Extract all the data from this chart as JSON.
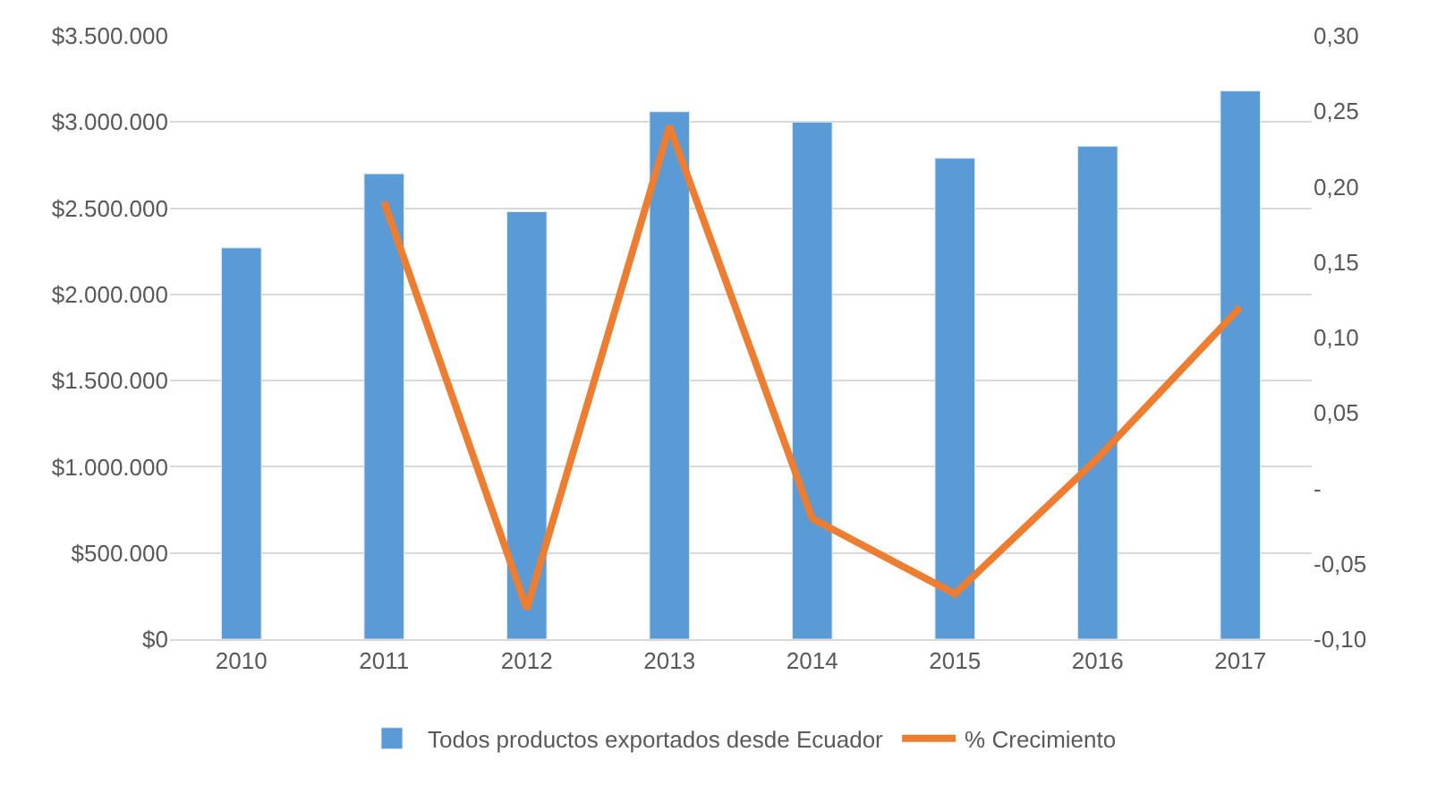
{
  "chart_data": {
    "type": "bar",
    "categories": [
      "2010",
      "2011",
      "2012",
      "2013",
      "2014",
      "2015",
      "2016",
      "2017"
    ],
    "series": [
      {
        "name": "Todos productos exportados desde Ecuador",
        "color": "#5b9bd5",
        "values": [
          2270000,
          2700000,
          2480000,
          3060000,
          3000000,
          2790000,
          2860000,
          3180000
        ]
      },
      {
        "name": "% Crecimiento",
        "type": "line",
        "axis": "y2",
        "color": "#ed7d31",
        "values": [
          null,
          0.19,
          -0.08,
          0.24,
          -0.02,
          -0.07,
          0.02,
          0.12
        ]
      }
    ],
    "ylim": [
      0,
      3500000
    ],
    "yticks": [
      {
        "value": 0,
        "label": "$0"
      },
      {
        "value": 500000,
        "label": "$500.000"
      },
      {
        "value": 1000000,
        "label": "$1.000.000"
      },
      {
        "value": 1500000,
        "label": "$1.500.000"
      },
      {
        "value": 2000000,
        "label": "$2.000.000"
      },
      {
        "value": 2500000,
        "label": "$2.500.000"
      },
      {
        "value": 3000000,
        "label": "$3.000.000"
      },
      {
        "value": 3500000,
        "label": "$3.500.000"
      }
    ],
    "y2lim": [
      -0.1,
      0.3
    ],
    "y2ticks": [
      {
        "value": -0.1,
        "label": "-0,10"
      },
      {
        "value": -0.05,
        "label": "-0,05"
      },
      {
        "value": 0,
        "label": "-"
      },
      {
        "value": 0.05,
        "label": "0,05"
      },
      {
        "value": 0.1,
        "label": "0,10"
      },
      {
        "value": 0.15,
        "label": "0,15"
      },
      {
        "value": 0.2,
        "label": "0,20"
      },
      {
        "value": 0.25,
        "label": "0,25"
      },
      {
        "value": 0.3,
        "label": "0,30"
      }
    ],
    "grid": "y",
    "legend": "bottom",
    "marker": "none",
    "line_style": "solid"
  }
}
